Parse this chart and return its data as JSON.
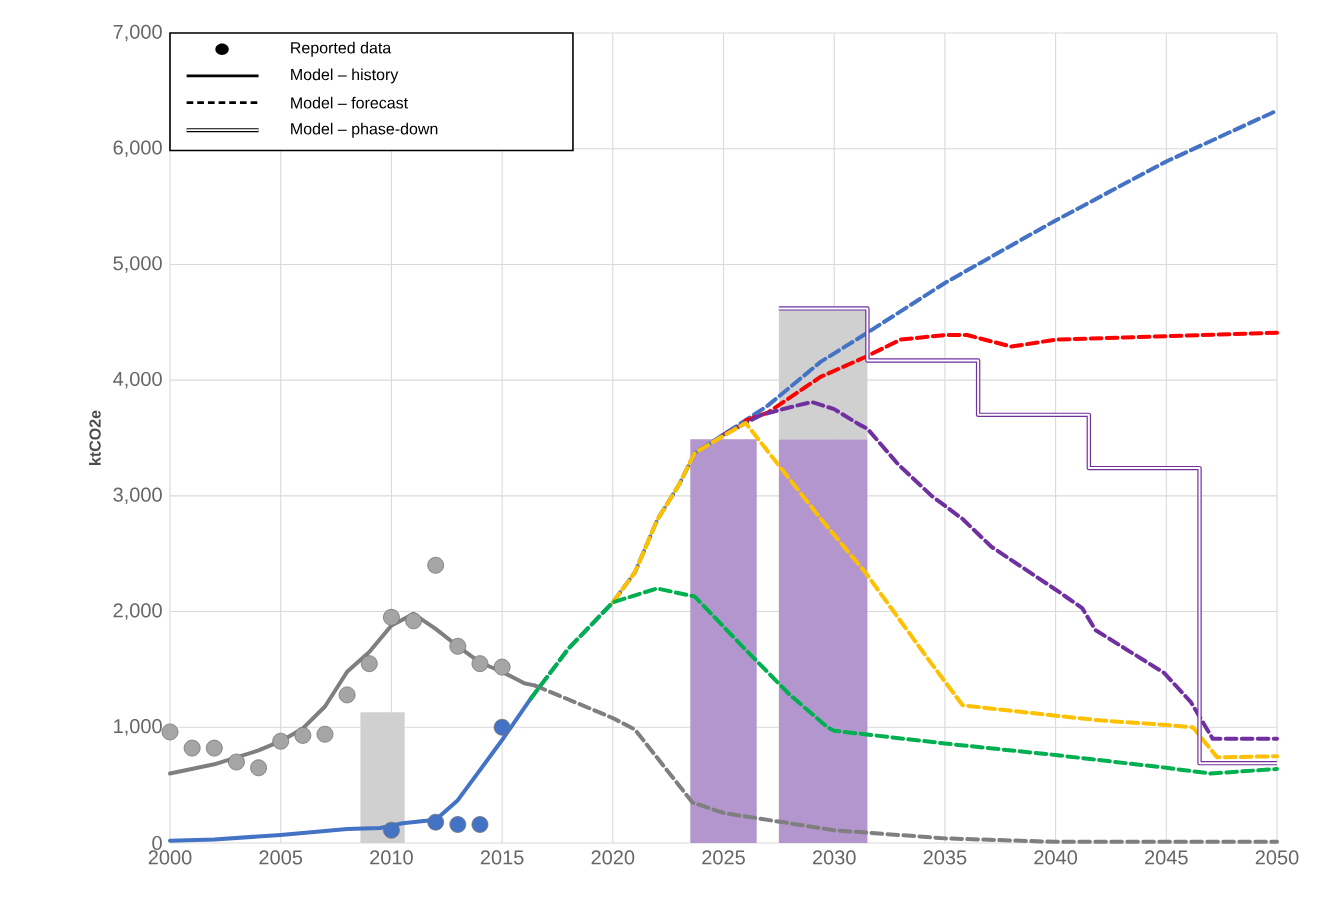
{
  "chart_data": {
    "type": "line",
    "ylabel": "ktCO2e",
    "xlim": [
      2000,
      2050
    ],
    "xticks": [
      2000,
      2005,
      2010,
      2015,
      2020,
      2025,
      2030,
      2035,
      2040,
      2045,
      2050
    ],
    "ylim": [
      0,
      7000
    ],
    "yticks": [
      0,
      {
        "value": 1000,
        "label": "1,000"
      },
      {
        "value": 2000,
        "label": "2,000"
      },
      {
        "value": 3000,
        "label": "3,000"
      },
      {
        "value": 4000,
        "label": "4,000"
      },
      {
        "value": 5000,
        "label": "5,000"
      },
      {
        "value": 6000,
        "label": "6,000"
      },
      {
        "value": 7000,
        "label": "7,000"
      }
    ],
    "grid": true,
    "annotations": [
      "Reported data",
      "Model – history",
      "Model – forecast",
      "Model – phase-down"
    ],
    "series": [
      {
        "type": "area",
        "color": "#d0d0d0",
        "x": [
          2008.6,
          2008.6,
          2010.6,
          2010.6
        ],
        "values": [
          0,
          1130,
          1130,
          0
        ]
      },
      {
        "type": "area",
        "color": "#b396ce",
        "x": [
          2023.5,
          2023.5,
          2026.5,
          2026.5
        ],
        "values": [
          0,
          3490,
          3490,
          0
        ]
      },
      {
        "type": "area",
        "color": "#b396ce",
        "x": [
          2027.5,
          2027.5,
          2031.5,
          2031.5
        ],
        "values": [
          0,
          3490,
          3490,
          0
        ]
      },
      {
        "type": "area",
        "color": "#d0d0d0",
        "x": [
          2027.5,
          2027.5,
          2031.5,
          2031.5
        ],
        "values": [
          3490,
          4620,
          4620,
          3490
        ]
      },
      {
        "type": "line",
        "line_style": "solid",
        "color": "#7f7f7f",
        "x": [
          2000,
          2002,
          2004,
          2005,
          2006,
          2007,
          2008,
          2009,
          2010,
          2011,
          2012,
          2013,
          2014,
          2015,
          2016,
          2016.5
        ],
        "values": [
          600,
          680,
          800,
          880,
          990,
          1180,
          1480,
          1650,
          1880,
          1980,
          1850,
          1700,
          1560,
          1480,
          1380,
          1360
        ]
      },
      {
        "type": "line",
        "line_style": "solid",
        "color": "#4472c4",
        "x": [
          2000,
          2002,
          2005,
          2008,
          2009.5,
          2010.5,
          2012,
          2013,
          2014,
          2015,
          2016.3
        ],
        "values": [
          20,
          30,
          70,
          120,
          130,
          170,
          200,
          370,
          630,
          890,
          1250
        ]
      },
      {
        "line_style": "dashed",
        "color": "#7f7f7f",
        "x": [
          2016.5,
          2018,
          2020,
          2021,
          2023.6,
          2025,
          2030,
          2035,
          2040,
          2045,
          2050
        ],
        "values": [
          1360,
          1240,
          1080,
          980,
          350,
          260,
          110,
          40,
          10,
          10,
          10
        ]
      },
      {
        "type": "line",
        "line_style": "dashed",
        "color": "#4472c4",
        "x": [
          2016.3,
          2018,
          2020,
          2021,
          2022,
          2023,
          2023.7,
          2025,
          2027,
          2029.4,
          2031.5,
          2035,
          2040,
          2045,
          2050
        ],
        "values": [
          1250,
          1680,
          2080,
          2340,
          2790,
          3100,
          3370,
          3530,
          3780,
          4160,
          4410,
          4840,
          5380,
          5890,
          6330
        ]
      },
      {
        "line_style": "dashed",
        "color": "#ff0000",
        "x": [
          2026,
          2027,
          2029.4,
          2031.4,
          2033,
          2035,
          2036,
          2038,
          2040,
          2045,
          2050
        ],
        "values": [
          3650,
          3720,
          4030,
          4200,
          4350,
          4390,
          4390,
          4290,
          4350,
          4380,
          4410
        ]
      },
      {
        "type": "line",
        "line_style": "dashed",
        "color": "#7030a0",
        "x": [
          2025,
          2026.7,
          2028.3,
          2029,
          2030,
          2031.1,
          2031.5,
          2032.9,
          2034.4,
          2035.8,
          2037.1,
          2040,
          2041.2,
          2041.8,
          2044.9,
          2046.1,
          2047.1,
          2050
        ],
        "values": [
          3530,
          3700,
          3780,
          3810,
          3750,
          3620,
          3580,
          3270,
          3000,
          2800,
          2560,
          2190,
          2030,
          1840,
          1470,
          1220,
          900,
          900
        ]
      },
      {
        "type": "line",
        "line_style": "dashed",
        "color": "#ffc000",
        "x": [
          2020,
          2021,
          2022,
          2023,
          2023.7,
          2025,
          2026,
          2027.1,
          2029.4,
          2031.4,
          2034.2,
          2035.8,
          2040,
          2042,
          2045,
          2046.2,
          2047.3,
          2050
        ],
        "values": [
          2080,
          2340,
          2790,
          3100,
          3370,
          3520,
          3630,
          3360,
          2800,
          2340,
          1600,
          1190,
          1100,
          1060,
          1020,
          1000,
          740,
          750
        ]
      },
      {
        "type": "line",
        "line_style": "dashed",
        "color": "#00b050",
        "x": [
          2016.3,
          2018,
          2020,
          2022,
          2023.7,
          2026,
          2028,
          2029.7,
          2030,
          2035,
          2040,
          2045,
          2047,
          2050
        ],
        "values": [
          1250,
          1680,
          2080,
          2200,
          2130,
          1670,
          1280,
          1000,
          970,
          860,
          760,
          650,
          600,
          640
        ]
      },
      {
        "type": "step",
        "line_style": "solid",
        "color": "#7030a0",
        "x": [
          2027.5,
          2031.5,
          2036.5,
          2041.5,
          2046.5,
          2050
        ],
        "values": [
          4620,
          4170,
          3700,
          3240,
          690,
          690
        ]
      },
      {
        "type": "scatter",
        "marker": "circle",
        "color": "#a5a5a5",
        "x": [
          2000,
          2001,
          2002,
          2003,
          2004,
          2005,
          2006,
          2007,
          2008,
          2009,
          2010,
          2011,
          2012,
          2013,
          2014,
          2015
        ],
        "values": [
          960,
          820,
          820,
          700,
          650,
          880,
          930,
          940,
          1280,
          1550,
          1950,
          1920,
          2400,
          1700,
          1550,
          1520
        ]
      },
      {
        "type": "scatter",
        "marker": "circle",
        "color": "#4472c4",
        "x": [
          2010,
          2012,
          2013,
          2014,
          2015
        ],
        "values": [
          110,
          180,
          160,
          160,
          1000
        ]
      }
    ]
  }
}
